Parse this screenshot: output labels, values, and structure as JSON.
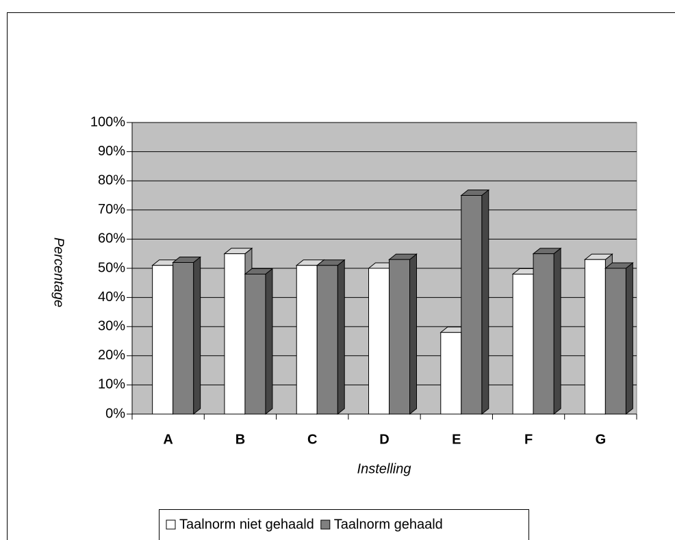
{
  "chart_data": {
    "type": "bar3d",
    "categories": [
      "A",
      "B",
      "C",
      "D",
      "E",
      "F",
      "G"
    ],
    "series": [
      {
        "name": "Taalnorm niet gehaald",
        "color": "#ffffff",
        "values": [
          51,
          55,
          51,
          50,
          28,
          48,
          53
        ]
      },
      {
        "name": "Taalnorm gehaald",
        "color": "#808080",
        "values": [
          52,
          48,
          51,
          53,
          75,
          55,
          50
        ]
      }
    ],
    "ylim": [
      0,
      100
    ],
    "yticks": [
      {
        "value": 0,
        "label": "0%"
      },
      {
        "value": 10,
        "label": "10%"
      },
      {
        "value": 20,
        "label": "20%"
      },
      {
        "value": 30,
        "label": "30%"
      },
      {
        "value": 40,
        "label": "40%"
      },
      {
        "value": 50,
        "label": "50%"
      },
      {
        "value": 60,
        "label": "60%"
      },
      {
        "value": 70,
        "label": "70%"
      },
      {
        "value": 80,
        "label": "80%"
      },
      {
        "value": 90,
        "label": "90%"
      },
      {
        "value": 100,
        "label": "100%"
      }
    ],
    "ylabel": "Percentage",
    "xlabel": "Instelling",
    "grid": true,
    "wall_color": "#c0c0c0",
    "legend": "bottom"
  }
}
